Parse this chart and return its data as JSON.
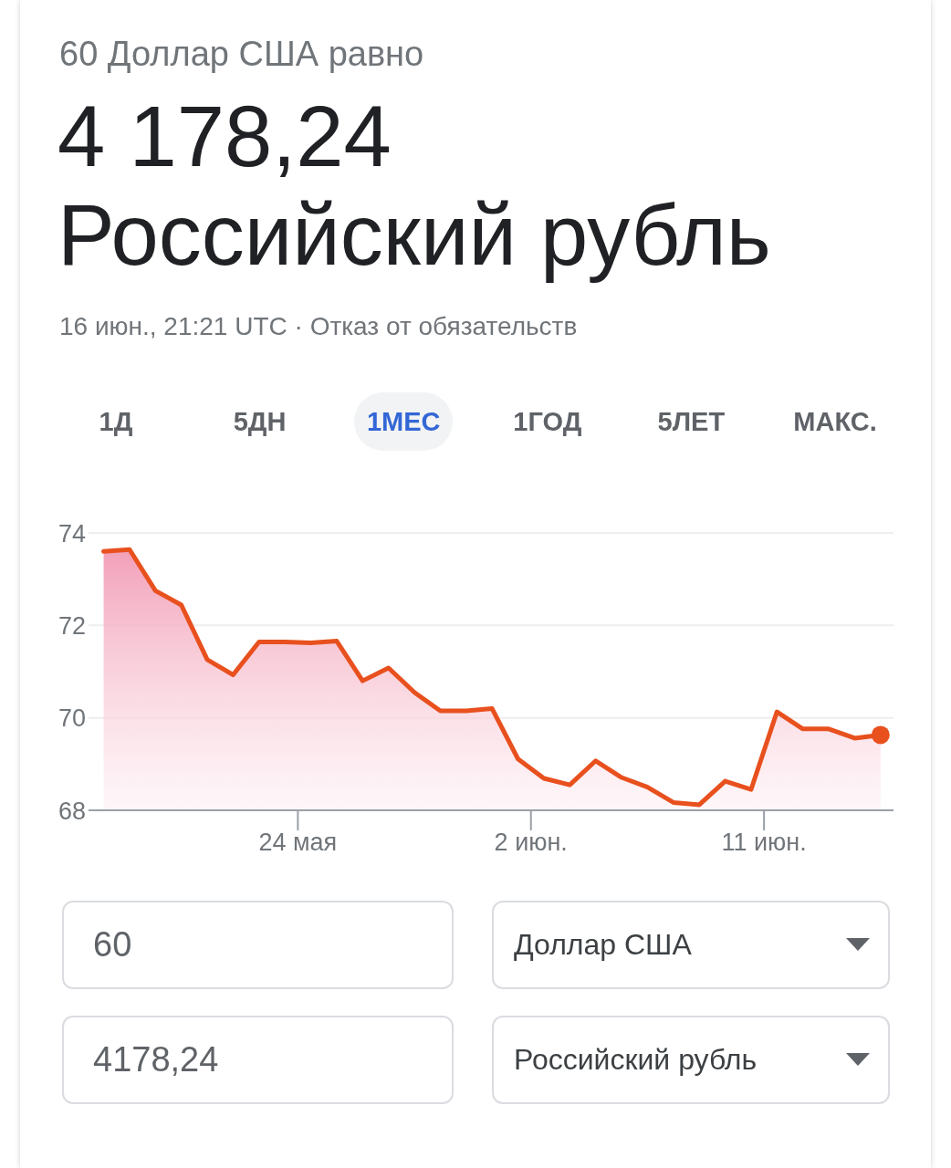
{
  "chart_data": {
    "type": "area",
    "subtitle": "60 Доллар США равно",
    "title": "4 178,24\nРоссийский рубль",
    "annotations": [
      "16 июн., 21:21 UTC · Отказ от обязательств",
      "1Д",
      "5ДН",
      "1МЕС",
      "1ГОД",
      "5ЛЕТ",
      "МАКС.",
      "60",
      "Доллар США",
      "4178,24",
      "Российский рубль"
    ],
    "x": [
      "--05-16T12:00",
      "--05-17T12:00",
      "--05-18T12:00",
      "--05-19T12:00",
      "--05-20T12:00",
      "--05-21T12:00",
      "--05-22T12:00",
      "--05-23T12:00",
      "--05-24T12:00",
      "--05-25T12:00",
      "--05-26T12:00",
      "--05-27T12:00",
      "--05-28T12:00",
      "--05-29T12:00",
      "--05-30T12:00",
      "--05-31T12:00",
      "--06-01T12:00",
      "--06-02T12:00",
      "--06-03T12:00",
      "--06-04T12:00",
      "--06-05T12:00",
      "--06-06T12:00",
      "--06-07T12:00",
      "--06-08T12:00",
      "--06-09T12:00",
      "--06-10T12:00",
      "--06-11T12:00",
      "--06-12T12:00",
      "--06-13T12:00",
      "--06-14T12:00",
      "--06-15T12:00"
    ],
    "series": [
      {
        "color": "#e8501e",
        "values": [
          73.6,
          73.64,
          72.75,
          72.44,
          71.26,
          70.93,
          71.64,
          71.64,
          71.62,
          71.66,
          70.8,
          71.08,
          70.55,
          70.15,
          70.15,
          70.2,
          69.11,
          68.69,
          68.55,
          69.07,
          68.71,
          68.5,
          68.17,
          68.12,
          68.63,
          68.45,
          70.13,
          69.76,
          69.76,
          69.56,
          69.63
        ]
      },
      {
        "type": "scatter",
        "color": "#e8501e",
        "marker": "circle",
        "x": [
          "--06-15T12:00"
        ],
        "values": [
          69.63
        ]
      }
    ],
    "xlim": [
      "--05-15T22:00",
      "--06-16T00:00"
    ],
    "xticks": [
      {
        "value": "--05-24",
        "label": "24 мая"
      },
      {
        "value": "--06-02",
        "label": "2 июн."
      },
      {
        "value": "--06-11",
        "label": "11 июн."
      }
    ],
    "ylim": [
      68,
      74
    ],
    "yticks": [
      68,
      70,
      72,
      74
    ],
    "grid": "y"
  }
}
